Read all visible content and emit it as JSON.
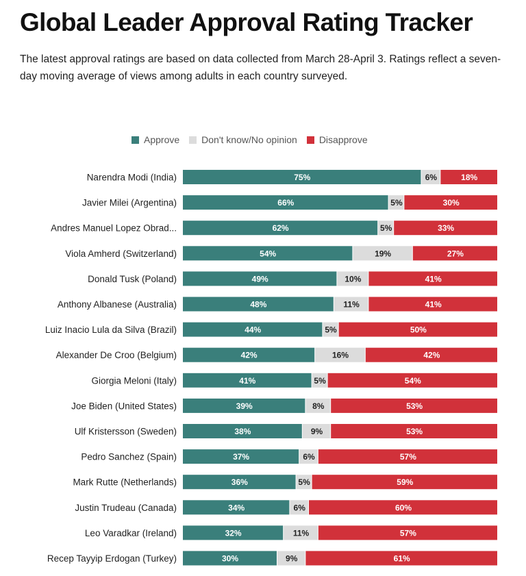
{
  "title": "Global Leader Approval Rating Tracker",
  "subtitle": "The latest approval ratings are based on data collected from March 28-April 3. Ratings reflect a seven-day moving average of views among adults in each country surveyed.",
  "colors": {
    "approve": "#3a7f7b",
    "dont_know": "#dcdcdc",
    "disapprove": "#d1313a"
  },
  "chart_data": {
    "type": "bar",
    "orientation": "horizontal",
    "stacked": true,
    "legend_position": "top",
    "categories": [
      "Narendra Modi (India)",
      "Javier Milei (Argentina)",
      "Andres Manuel Lopez Obrad...",
      "Viola Amherd (Switzerland)",
      "Donald Tusk (Poland)",
      "Anthony Albanese (Australia)",
      "Luiz Inacio Lula da Silva (Brazil)",
      "Alexander De Croo (Belgium)",
      "Giorgia Meloni (Italy)",
      "Joe Biden (United States)",
      "Ulf Kristersson (Sweden)",
      "Pedro Sanchez (Spain)",
      "Mark Rutte (Netherlands)",
      "Justin Trudeau (Canada)",
      "Leo Varadkar (Ireland)",
      "Recep Tayyip Erdogan (Turkey)"
    ],
    "series": [
      {
        "name": "Approve",
        "values": [
          75,
          66,
          62,
          54,
          49,
          48,
          44,
          42,
          41,
          39,
          38,
          37,
          36,
          34,
          32,
          30
        ]
      },
      {
        "name": "Don't know/No opinion",
        "values": [
          6,
          5,
          5,
          19,
          10,
          11,
          5,
          16,
          5,
          8,
          9,
          6,
          5,
          6,
          11,
          9
        ]
      },
      {
        "name": "Disapprove",
        "values": [
          18,
          30,
          33,
          27,
          41,
          41,
          50,
          42,
          54,
          53,
          53,
          57,
          59,
          60,
          57,
          61
        ]
      }
    ],
    "value_suffix": "%"
  }
}
